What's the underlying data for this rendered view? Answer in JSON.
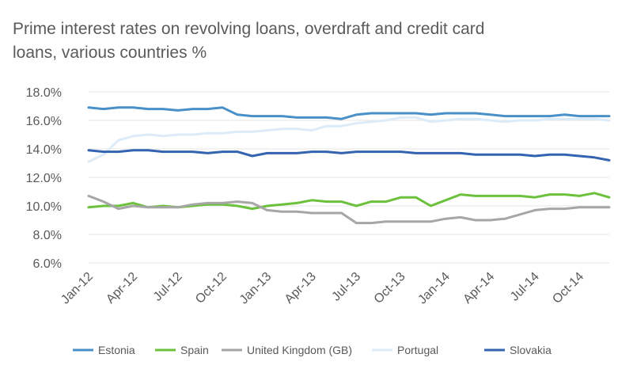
{
  "chart_data": {
    "type": "line",
    "title": "Prime interest rates on revolving loans, overdraft and credit card loans, various countries %",
    "xlabel": "",
    "ylabel": "",
    "ylim": [
      6.0,
      18.0
    ],
    "yticks": [
      "18.0%",
      "16.0%",
      "14.0%",
      "12.0%",
      "10.0%",
      "8.0%",
      "6.0%"
    ],
    "x_tick_labels": [
      "Jan-12",
      "Apr-12",
      "Jul-12",
      "Oct-12",
      "Jan-13",
      "Apr-13",
      "Jul-13",
      "Oct-13",
      "Jan-14",
      "Apr-14",
      "Jul-14",
      "Oct-14"
    ],
    "grid": true,
    "legend": "bottom",
    "x": [
      "2012-01",
      "2012-02",
      "2012-03",
      "2012-04",
      "2012-05",
      "2012-06",
      "2012-07",
      "2012-08",
      "2012-09",
      "2012-10",
      "2012-11",
      "2012-12",
      "2013-01",
      "2013-02",
      "2013-03",
      "2013-04",
      "2013-05",
      "2013-06",
      "2013-07",
      "2013-08",
      "2013-09",
      "2013-10",
      "2013-11",
      "2013-12",
      "2014-01",
      "2014-02",
      "2014-03",
      "2014-04",
      "2014-05",
      "2014-06",
      "2014-07",
      "2014-08",
      "2014-09",
      "2014-10",
      "2014-11",
      "2014-12"
    ],
    "series": [
      {
        "name": "Estonia",
        "color": "#4a90c8",
        "values": [
          16.9,
          16.8,
          16.9,
          16.9,
          16.8,
          16.8,
          16.7,
          16.8,
          16.8,
          16.9,
          16.4,
          16.3,
          16.3,
          16.3,
          16.2,
          16.2,
          16.2,
          16.1,
          16.4,
          16.5,
          16.5,
          16.5,
          16.5,
          16.4,
          16.5,
          16.5,
          16.5,
          16.4,
          16.3,
          16.3,
          16.3,
          16.3,
          16.4,
          16.3,
          16.3,
          16.3
        ]
      },
      {
        "name": "Spain",
        "color": "#6bc13c",
        "values": [
          9.9,
          10.0,
          10.0,
          10.2,
          9.9,
          10.0,
          9.9,
          10.0,
          10.1,
          10.1,
          10.0,
          9.8,
          10.0,
          10.1,
          10.2,
          10.4,
          10.3,
          10.3,
          10.0,
          10.3,
          10.3,
          10.6,
          10.6,
          10.0,
          10.4,
          10.8,
          10.7,
          10.7,
          10.7,
          10.7,
          10.6,
          10.8,
          10.8,
          10.7,
          10.9,
          10.6
        ]
      },
      {
        "name": "United Kingdom (GB)",
        "color": "#a6a6a6",
        "values": [
          10.7,
          10.3,
          9.8,
          10.0,
          9.9,
          9.9,
          9.9,
          10.1,
          10.2,
          10.2,
          10.3,
          10.2,
          9.7,
          9.6,
          9.6,
          9.5,
          9.5,
          9.5,
          8.8,
          8.8,
          8.9,
          8.9,
          8.9,
          8.9,
          9.1,
          9.2,
          9.0,
          9.0,
          9.1,
          9.4,
          9.7,
          9.8,
          9.8,
          9.9,
          9.9,
          9.9
        ]
      },
      {
        "name": "Portugal",
        "color": "#dcebf7",
        "values": [
          13.1,
          13.6,
          14.6,
          14.9,
          15.0,
          14.9,
          15.0,
          15.0,
          15.1,
          15.1,
          15.2,
          15.2,
          15.3,
          15.4,
          15.4,
          15.3,
          15.6,
          15.6,
          15.8,
          15.9,
          16.0,
          16.2,
          16.2,
          15.9,
          16.0,
          16.1,
          16.1,
          16.0,
          15.9,
          16.0,
          16.0,
          16.1,
          16.1,
          16.1,
          16.1,
          16.0
        ]
      },
      {
        "name": "Slovakia",
        "color": "#3463b0",
        "values": [
          13.9,
          13.8,
          13.8,
          13.9,
          13.9,
          13.8,
          13.8,
          13.8,
          13.7,
          13.8,
          13.8,
          13.5,
          13.7,
          13.7,
          13.7,
          13.8,
          13.8,
          13.7,
          13.8,
          13.8,
          13.8,
          13.8,
          13.7,
          13.7,
          13.7,
          13.7,
          13.6,
          13.6,
          13.6,
          13.6,
          13.5,
          13.6,
          13.6,
          13.5,
          13.4,
          13.2
        ]
      }
    ]
  }
}
